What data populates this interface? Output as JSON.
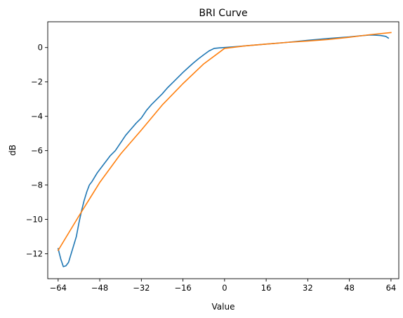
{
  "chart_data": {
    "type": "line",
    "title": "BRI Curve",
    "xlabel": "Value",
    "ylabel": "dB",
    "xlim": [
      -68,
      67
    ],
    "ylim": [
      -13.45,
      1.5
    ],
    "xticks": [
      -64,
      -48,
      -32,
      -16,
      0,
      16,
      32,
      48,
      64
    ],
    "xtick_labels": [
      "−64",
      "−48",
      "−32",
      "−16",
      "0",
      "16",
      "32",
      "48",
      "64"
    ],
    "yticks": [
      -12,
      -10,
      -8,
      -6,
      -4,
      -2,
      0
    ],
    "ytick_labels": [
      "−12",
      "−10",
      "−8",
      "−6",
      "−4",
      "−2",
      "0"
    ],
    "grid": false,
    "legend": false,
    "series": [
      {
        "color": "#1f77b4",
        "x": [
          -64,
          -63,
          -62,
          -61,
          -60,
          -59,
          -58,
          -57,
          -56,
          -55,
          -54,
          -53,
          -52,
          -51,
          -50,
          -49,
          -48,
          -46,
          -44,
          -42,
          -40,
          -38,
          -36,
          -34,
          -32,
          -30,
          -28,
          -26,
          -24,
          -22,
          -20,
          -18,
          -16,
          -14,
          -12,
          -10,
          -8,
          -6,
          -4,
          -2,
          0,
          4,
          8,
          16,
          24,
          32,
          40,
          48,
          52,
          56,
          58,
          60,
          62,
          63
        ],
        "y": [
          -11.7,
          -12.3,
          -12.75,
          -12.7,
          -12.5,
          -12.0,
          -11.5,
          -11.0,
          -10.2,
          -9.5,
          -8.9,
          -8.4,
          -8.0,
          -7.8,
          -7.55,
          -7.3,
          -7.1,
          -6.7,
          -6.3,
          -6.0,
          -5.55,
          -5.1,
          -4.75,
          -4.4,
          -4.1,
          -3.65,
          -3.3,
          -3.0,
          -2.7,
          -2.35,
          -2.05,
          -1.75,
          -1.45,
          -1.17,
          -0.9,
          -0.65,
          -0.42,
          -0.2,
          -0.05,
          -0.02,
          0.0,
          0.05,
          0.1,
          0.2,
          0.3,
          0.42,
          0.53,
          0.62,
          0.68,
          0.73,
          0.72,
          0.7,
          0.65,
          0.55
        ]
      },
      {
        "color": "#ff7f0e",
        "x": [
          -64,
          -56,
          -48,
          -40,
          -32,
          -24,
          -16,
          -8,
          0,
          8,
          16,
          24,
          32,
          40,
          48,
          56,
          64
        ],
        "y": [
          -11.8,
          -9.8,
          -7.85,
          -6.2,
          -4.8,
          -3.35,
          -2.1,
          -0.95,
          -0.05,
          0.1,
          0.2,
          0.3,
          0.38,
          0.47,
          0.6,
          0.75,
          0.87
        ]
      }
    ]
  }
}
